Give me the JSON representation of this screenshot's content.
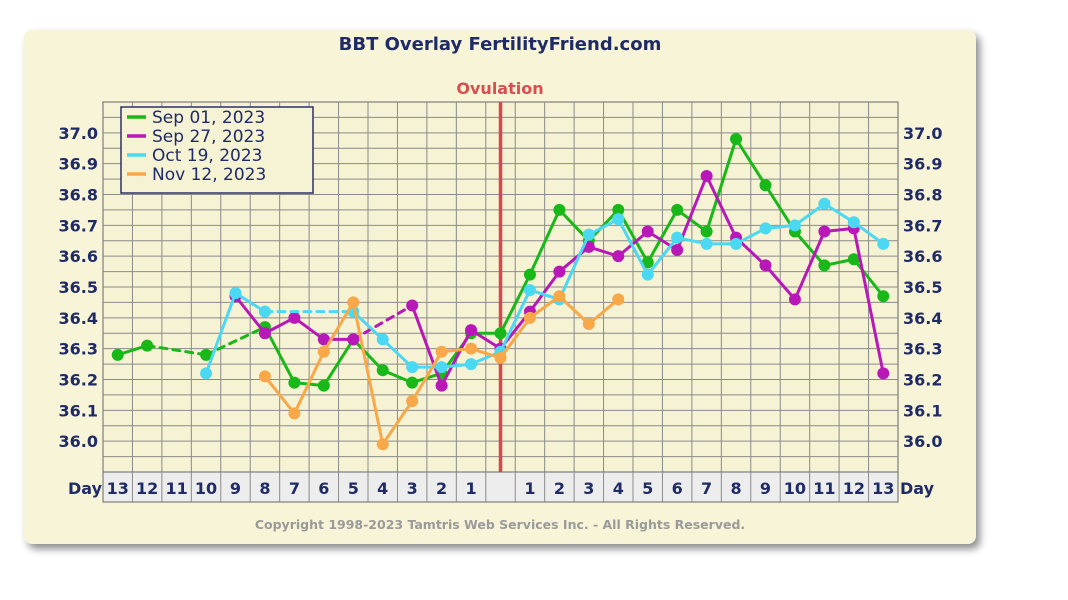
{
  "chart_data": {
    "type": "line",
    "title": "BBT Overlay FertilityFriend.com",
    "annotation": "Ovulation",
    "x_axis_label": "Day",
    "copyright": "Copyright 1998-2023 Tamtris Web Services Inc. - All Rights Reserved.",
    "ylim": [
      35.9,
      37.1
    ],
    "yticks": [
      "37.0",
      "36.9",
      "36.8",
      "36.7",
      "36.6",
      "36.5",
      "36.4",
      "36.3",
      "36.2",
      "36.1",
      "36.0"
    ],
    "ytick_values": [
      37.0,
      36.9,
      36.8,
      36.7,
      36.6,
      36.5,
      36.4,
      36.3,
      36.2,
      36.1,
      36.0
    ],
    "categories": [
      "13",
      "12",
      "11",
      "10",
      "9",
      "8",
      "7",
      "6",
      "5",
      "4",
      "3",
      "2",
      "1",
      "",
      "1",
      "2",
      "3",
      "4",
      "5",
      "6",
      "7",
      "8",
      "9",
      "10",
      "11",
      "12",
      "13"
    ],
    "ovulation_index": 13,
    "grid": true,
    "legend_position": "top-left",
    "series": [
      {
        "name": "Sep 01, 2023",
        "color": "#18b818",
        "values": [
          36.28,
          36.31,
          null,
          36.28,
          null,
          36.37,
          36.19,
          36.18,
          36.33,
          36.23,
          36.19,
          36.22,
          36.35,
          36.35,
          36.54,
          36.75,
          36.65,
          36.75,
          36.58,
          36.75,
          36.68,
          36.98,
          36.83,
          36.68,
          36.57,
          36.59,
          36.47
        ],
        "dashed_segments": [
          [
            1,
            3
          ],
          [
            3,
            5
          ]
        ]
      },
      {
        "name": "Sep 27, 2023",
        "color": "#b818b8",
        "values": [
          null,
          null,
          null,
          null,
          36.47,
          36.35,
          36.4,
          36.33,
          36.33,
          null,
          36.44,
          36.18,
          36.36,
          36.3,
          36.42,
          36.55,
          36.63,
          36.6,
          36.68,
          36.62,
          36.86,
          36.66,
          36.57,
          36.46,
          36.68,
          36.69,
          36.22
        ],
        "dashed_segments": [
          [
            8,
            10
          ]
        ]
      },
      {
        "name": "Oct 19, 2023",
        "color": "#4ad8f2",
        "values": [
          null,
          null,
          null,
          36.22,
          36.48,
          36.42,
          null,
          null,
          36.42,
          36.33,
          36.24,
          36.24,
          36.25,
          36.29,
          36.49,
          36.46,
          36.67,
          36.72,
          36.54,
          36.66,
          36.64,
          36.64,
          36.69,
          36.7,
          36.77,
          36.71,
          36.64
        ],
        "dashed_segments": [
          [
            5,
            8
          ]
        ]
      },
      {
        "name": "Nov 12, 2023",
        "color": "#f8a848",
        "values": [
          null,
          null,
          null,
          null,
          null,
          36.21,
          36.09,
          36.29,
          36.45,
          35.99,
          36.13,
          36.29,
          36.3,
          36.27,
          36.4,
          36.47,
          36.38,
          36.46,
          null,
          null,
          null,
          null,
          null,
          null,
          null,
          null,
          null
        ],
        "dashed_segments": []
      }
    ]
  }
}
